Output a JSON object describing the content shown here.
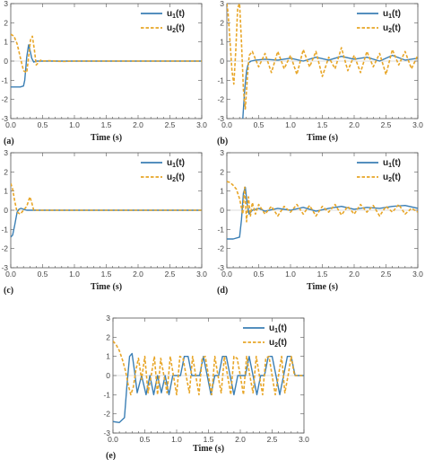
{
  "colors": {
    "u1": "#3b7fb5",
    "u2": "#e8a628"
  },
  "legend": {
    "u1": {
      "base": "u",
      "sub": "1",
      "suffix": "(t)"
    },
    "u2": {
      "base": "u",
      "sub": "2",
      "suffix": "(t)"
    }
  },
  "chart_data": [
    {
      "panel": "(a)",
      "type": "line",
      "xlabel": "Time (s)",
      "xlim": [
        0,
        3
      ],
      "ylim": [
        -3,
        3
      ],
      "xticks": [
        "0.0",
        "0.5",
        "1.0",
        "1.5",
        "2.0",
        "2.5",
        "3.0"
      ],
      "yticks": [
        "-3",
        "-2",
        "-1",
        "0",
        "1",
        "2",
        "3"
      ],
      "series": [
        {
          "name": "u1(t)",
          "style": "solid",
          "x": [
            0,
            0.05,
            0.1,
            0.15,
            0.2,
            0.22,
            0.25,
            0.28,
            0.3,
            0.33,
            0.36,
            0.4,
            0.45,
            0.5,
            1.0,
            1.5,
            2.0,
            2.5,
            3.0
          ],
          "y": [
            -1.35,
            -1.35,
            -1.35,
            -1.35,
            -1.3,
            -1.0,
            0.2,
            0.85,
            0.6,
            0.15,
            -0.05,
            0.0,
            0.0,
            0.0,
            0.0,
            0.0,
            0.0,
            0.0,
            0.0
          ]
        },
        {
          "name": "u2(t)",
          "style": "dashed",
          "x": [
            0,
            0.05,
            0.1,
            0.15,
            0.2,
            0.25,
            0.28,
            0.31,
            0.34,
            0.37,
            0.4,
            0.43,
            0.47,
            0.5,
            0.6,
            0.8,
            1.0,
            1.5,
            2.0,
            2.5,
            3.0
          ],
          "y": [
            1.4,
            1.3,
            0.9,
            0.2,
            -0.5,
            -0.6,
            0.2,
            1.1,
            1.3,
            0.6,
            -0.2,
            -0.1,
            0.05,
            0.0,
            0.02,
            -0.02,
            0.0,
            0.0,
            0.0,
            0.0,
            0.0
          ]
        }
      ]
    },
    {
      "panel": "(b)",
      "type": "line",
      "xlabel": "Time (s)",
      "xlim": [
        0,
        3
      ],
      "ylim": [
        -3,
        3
      ],
      "xticks": [
        "0.0",
        "0.5",
        "1.0",
        "1.5",
        "2.0",
        "2.5",
        "3.0"
      ],
      "yticks": [
        "-3",
        "-2",
        "-1",
        "0",
        "1",
        "2",
        "3"
      ],
      "series": [
        {
          "name": "u1(t)",
          "style": "solid",
          "x": [
            0.25,
            0.28,
            0.31,
            0.34,
            0.38,
            0.45,
            0.6,
            0.8,
            1.0,
            1.2,
            1.4,
            1.6,
            1.8,
            2.0,
            2.2,
            2.4,
            2.6,
            2.8,
            3.0
          ],
          "y": [
            -3.0,
            -1.5,
            -0.5,
            -0.1,
            0.0,
            0.05,
            0.1,
            0.05,
            0.15,
            0.0,
            0.2,
            0.05,
            0.25,
            0.1,
            0.2,
            0.0,
            0.3,
            0.05,
            0.15
          ]
        },
        {
          "name": "u2(t)",
          "style": "dashed",
          "x": [
            0.0,
            0.02,
            0.05,
            0.08,
            0.11,
            0.14,
            0.17,
            0.2,
            0.23,
            0.26,
            0.29,
            0.32,
            0.35,
            0.4,
            0.5,
            0.6,
            0.7,
            0.8,
            0.9,
            1.0,
            1.1,
            1.2,
            1.3,
            1.4,
            1.5,
            1.6,
            1.7,
            1.8,
            1.9,
            2.0,
            2.1,
            2.2,
            2.3,
            2.4,
            2.5,
            2.6,
            2.7,
            2.8,
            2.9,
            3.0
          ],
          "y": [
            3.0,
            2.5,
            1.0,
            -0.5,
            -1.2,
            0.5,
            2.8,
            3.0,
            1.0,
            -1.5,
            -2.5,
            -1.0,
            0.3,
            0.5,
            -0.3,
            0.4,
            -0.6,
            0.5,
            -0.4,
            0.3,
            -0.7,
            0.6,
            -0.3,
            0.5,
            -0.8,
            0.2,
            -0.4,
            0.7,
            -0.5,
            0.3,
            -0.6,
            0.5,
            -0.3,
            0.4,
            -0.7,
            0.6,
            -0.2,
            0.5,
            -0.4,
            0.3
          ]
        }
      ]
    },
    {
      "panel": "(c)",
      "type": "line",
      "xlabel": "Time (s)",
      "xlim": [
        0,
        3
      ],
      "ylim": [
        -3,
        3
      ],
      "xticks": [
        "0.0",
        "0.5",
        "1.0",
        "1.5",
        "2.0",
        "2.5",
        "3.0"
      ],
      "yticks": [
        "-3",
        "-2",
        "-1",
        "0",
        "1",
        "2",
        "3"
      ],
      "series": [
        {
          "name": "u1(t)",
          "style": "solid",
          "x": [
            0,
            0.03,
            0.06,
            0.1,
            0.13,
            0.16,
            0.2,
            0.25,
            0.3,
            0.4,
            0.6,
            1.0,
            1.5,
            2.0,
            2.5,
            3.0
          ],
          "y": [
            -1.4,
            -1.3,
            -0.8,
            -0.1,
            0.05,
            0.1,
            0.05,
            0.0,
            0.0,
            0.0,
            0.0,
            0.0,
            0.0,
            0.0,
            0.0,
            0.0
          ]
        },
        {
          "name": "u2(t)",
          "style": "dashed",
          "x": [
            0,
            0.03,
            0.06,
            0.1,
            0.15,
            0.2,
            0.25,
            0.3,
            0.33,
            0.36,
            0.4,
            0.5,
            0.7,
            1.0,
            1.5,
            2.0,
            2.5,
            3.0
          ],
          "y": [
            1.4,
            1.1,
            0.5,
            -0.1,
            -0.2,
            0.0,
            0.2,
            0.7,
            0.4,
            0.0,
            0.0,
            0.0,
            0.0,
            0.0,
            0.0,
            0.0,
            0.0,
            0.0
          ]
        }
      ]
    },
    {
      "panel": "(d)",
      "type": "line",
      "xlabel": "Time (s)",
      "xlim": [
        0,
        3
      ],
      "ylim": [
        -3,
        3
      ],
      "xticks": [
        "0.0",
        "0.5",
        "1.0",
        "1.5",
        "2.0",
        "2.5",
        "3.0"
      ],
      "yticks": [
        "-3",
        "-2",
        "-1",
        "0",
        "1",
        "2",
        "3"
      ],
      "series": [
        {
          "name": "u1(t)",
          "style": "solid",
          "x": [
            0,
            0.1,
            0.2,
            0.23,
            0.26,
            0.29,
            0.32,
            0.35,
            0.4,
            0.5,
            0.6,
            0.8,
            1.0,
            1.2,
            1.4,
            1.6,
            1.8,
            2.0,
            2.2,
            2.4,
            2.6,
            2.8,
            3.0
          ],
          "y": [
            -1.5,
            -1.5,
            -1.4,
            -0.5,
            0.9,
            1.2,
            0.3,
            -0.2,
            0.0,
            0.1,
            -0.05,
            0.1,
            0.0,
            0.15,
            -0.05,
            0.1,
            0.2,
            0.05,
            0.15,
            0.1,
            0.2,
            0.25,
            0.1
          ]
        },
        {
          "name": "u2(t)",
          "style": "dashed",
          "x": [
            0,
            0.05,
            0.1,
            0.15,
            0.2,
            0.25,
            0.28,
            0.31,
            0.34,
            0.37,
            0.4,
            0.45,
            0.5,
            0.6,
            0.7,
            0.8,
            0.9,
            1.0,
            1.1,
            1.2,
            1.3,
            1.4,
            1.5,
            1.6,
            1.7,
            1.8,
            1.9,
            2.0,
            2.1,
            2.2,
            2.3,
            2.4,
            2.5,
            2.6,
            2.7,
            2.8,
            2.9,
            3.0
          ],
          "y": [
            1.5,
            1.45,
            1.3,
            1.1,
            0.6,
            -0.2,
            1.2,
            -0.6,
            0.7,
            -0.3,
            0.4,
            -0.2,
            0.3,
            -0.2,
            0.2,
            -0.3,
            0.2,
            -0.1,
            0.3,
            -0.2,
            0.25,
            -0.3,
            0.2,
            -0.1,
            0.3,
            -0.25,
            0.2,
            -0.2,
            0.3,
            -0.1,
            0.25,
            -0.3,
            0.2,
            -0.1,
            0.3,
            -0.2,
            0.1,
            -0.1
          ]
        }
      ]
    },
    {
      "panel": "(e)",
      "type": "line",
      "xlabel": "Time (s)",
      "xlim": [
        0,
        3
      ],
      "ylim": [
        -3,
        3
      ],
      "xticks": [
        "0.0",
        "0.5",
        "1.0",
        "1.5",
        "2.0",
        "2.5",
        "3.0"
      ],
      "yticks": [
        "-3",
        "-2",
        "-1",
        "0",
        "1",
        "2",
        "3"
      ],
      "series": [
        {
          "name": "u1(t)",
          "style": "solid",
          "x": [
            0,
            0.1,
            0.18,
            0.22,
            0.26,
            0.3,
            0.34,
            0.38,
            0.45,
            0.52,
            0.58,
            0.64,
            0.7,
            0.76,
            0.82,
            0.88,
            0.94,
            1.0,
            1.06,
            1.12,
            1.18,
            1.24,
            1.3,
            1.36,
            1.42,
            1.48,
            1.54,
            1.6,
            1.66,
            1.72,
            1.78,
            1.84,
            1.9,
            1.96,
            2.02,
            2.08,
            2.14,
            2.2,
            2.26,
            2.32,
            2.38,
            2.44,
            2.5,
            2.56,
            2.62,
            2.68,
            2.74,
            2.8,
            2.86,
            2.92,
            3.0
          ],
          "y": [
            -2.4,
            -2.45,
            -2.2,
            -0.5,
            1.0,
            1.15,
            0.2,
            -0.9,
            0.0,
            -1.0,
            0.0,
            -1.0,
            0.0,
            -0.9,
            0.0,
            -1.0,
            0.0,
            0.0,
            0.0,
            1.0,
            1.0,
            0.0,
            0.0,
            0.0,
            1.0,
            0.0,
            -1.0,
            0.0,
            0.0,
            1.0,
            1.0,
            0.0,
            -1.0,
            0.0,
            0.0,
            0.0,
            1.0,
            0.0,
            -1.0,
            0.0,
            0.0,
            1.0,
            1.0,
            0.0,
            -1.0,
            0.0,
            1.0,
            1.0,
            0.0,
            0.0,
            0.0
          ]
        },
        {
          "name": "u2(t)",
          "style": "dashed",
          "x": [
            0,
            0.05,
            0.1,
            0.15,
            0.2,
            0.24,
            0.28,
            0.32,
            0.36,
            0.4,
            0.45,
            0.5,
            0.55,
            0.6,
            0.65,
            0.7,
            0.75,
            0.8,
            0.85,
            0.9,
            0.95,
            1.0,
            1.05,
            1.1,
            1.15,
            1.2,
            1.25,
            1.3,
            1.35,
            1.4,
            1.45,
            1.5,
            1.55,
            1.6,
            1.65,
            1.7,
            1.75,
            1.8,
            1.85,
            1.9,
            1.95,
            2.0,
            2.05,
            2.1,
            2.15,
            2.2,
            2.25,
            2.3,
            2.35,
            2.4,
            2.45,
            2.5,
            2.55,
            2.6,
            2.65,
            2.7,
            2.75,
            2.8,
            2.85,
            2.9,
            3.0
          ],
          "y": [
            1.8,
            1.6,
            1.3,
            0.8,
            0.2,
            -0.5,
            -1.0,
            -0.6,
            0.3,
            0.9,
            -0.2,
            1.0,
            -0.9,
            0.0,
            1.0,
            -1.0,
            0.9,
            0.0,
            -0.9,
            1.0,
            0.0,
            -1.0,
            1.0,
            0.9,
            0.0,
            -0.9,
            1.0,
            0.0,
            -1.0,
            0.9,
            1.0,
            0.0,
            -1.0,
            1.0,
            0.0,
            -0.9,
            1.0,
            0.0,
            -1.0,
            1.0,
            0.9,
            0.0,
            -1.0,
            1.0,
            0.0,
            -0.9,
            1.0,
            0.0,
            -1.0,
            0.9,
            1.0,
            0.0,
            -1.0,
            0.0,
            1.0,
            -0.9,
            0.0,
            1.0,
            0.0,
            0.0,
            0.0
          ]
        }
      ]
    }
  ]
}
